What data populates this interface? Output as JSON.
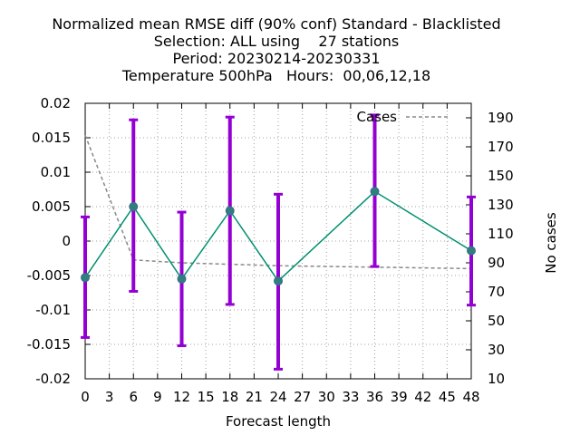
{
  "chart_data": {
    "type": "line",
    "title_lines": [
      "Normalized mean RMSE diff (90% conf) Standard - Blacklisted",
      "Selection: ALL using    27 stations",
      "Period: 20230214-20230331",
      "Temperature 500hPa   Hours:  00,06,12,18"
    ],
    "xlabel": "Forecast length",
    "y2label": "No cases",
    "xlim": [
      0,
      48
    ],
    "ylim": [
      -0.02,
      0.02
    ],
    "y2lim": [
      10,
      200
    ],
    "x_ticks": [
      "0",
      "3",
      "6",
      "9",
      "12",
      "15",
      "18",
      "21",
      "24",
      "27",
      "30",
      "33",
      "36",
      "39",
      "42",
      "45",
      "48"
    ],
    "y_ticks": [
      "-0.02",
      "-0.015",
      "-0.01",
      "-0.005",
      "0",
      "0.005",
      "0.01",
      "0.015",
      "0.02"
    ],
    "y2_ticks": [
      "10",
      "30",
      "50",
      "70",
      "90",
      "110",
      "130",
      "150",
      "170",
      "190"
    ],
    "grid": true,
    "legend": {
      "label": "Cases",
      "position": "top-right"
    },
    "series": [
      {
        "name": "RMSE diff",
        "color": "#009070",
        "x": [
          0,
          6,
          12,
          18,
          24,
          36,
          48
        ],
        "y": [
          -0.0053,
          0.005,
          -0.0055,
          0.0044,
          -0.0058,
          0.0072,
          -0.0014
        ],
        "err_low": [
          -0.014,
          -0.0073,
          -0.0152,
          -0.0092,
          -0.0186,
          -0.0037,
          -0.0093
        ],
        "err_high": [
          0.0035,
          0.0176,
          0.0042,
          0.018,
          0.0068,
          0.0183,
          0.0064
        ],
        "err_color": "#9400d3"
      },
      {
        "name": "Cases",
        "color": "#888888",
        "axis": "y2",
        "x": [
          0,
          6,
          12,
          18,
          24,
          36,
          48
        ],
        "y": [
          178,
          92,
          90,
          89,
          88,
          87,
          86
        ]
      }
    ]
  }
}
